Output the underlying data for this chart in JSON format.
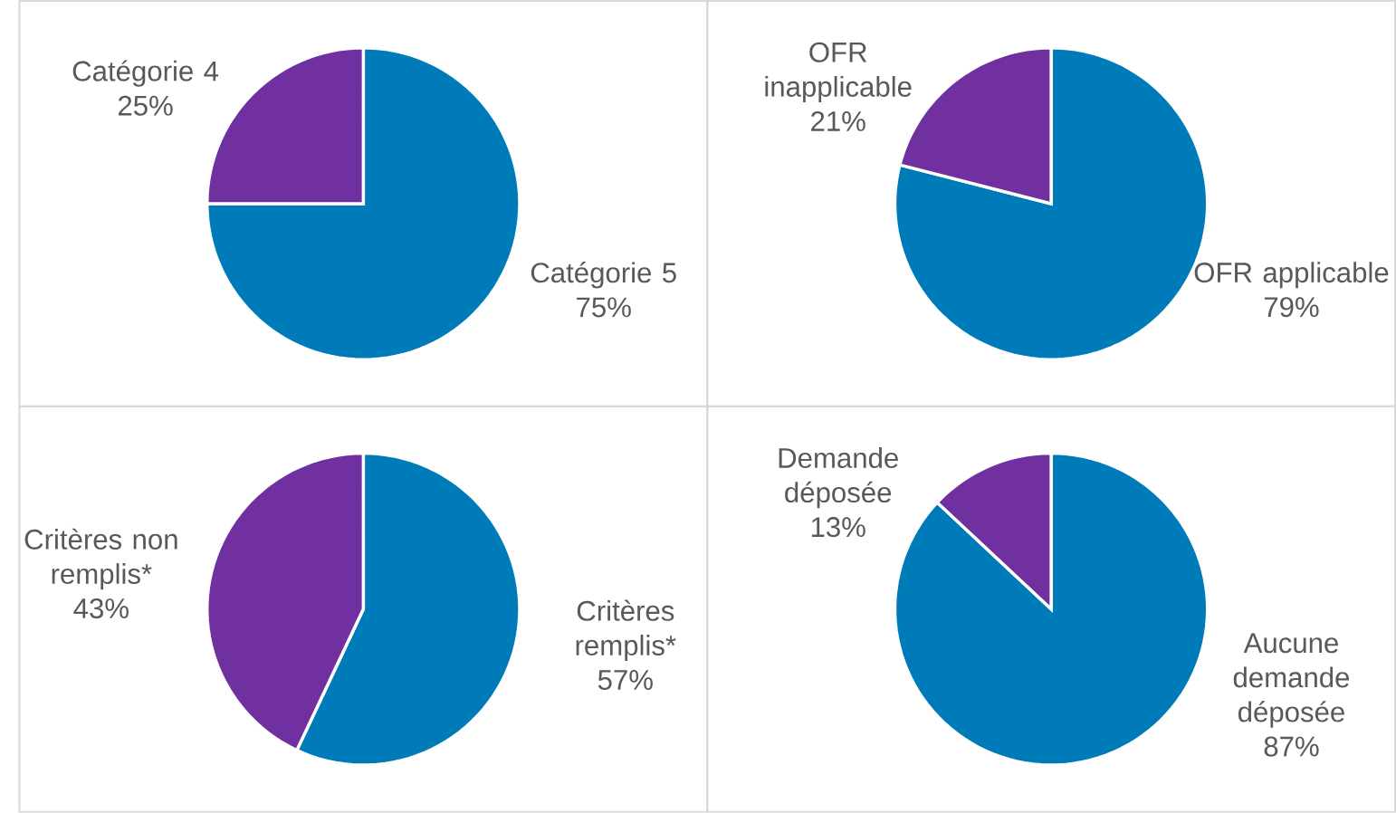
{
  "chart_data": [
    {
      "type": "pie",
      "categories": [
        "Catégorie 5",
        "Catégorie 4"
      ],
      "values": [
        75,
        25
      ],
      "value_labels": [
        "75%",
        "25%"
      ],
      "colors": [
        "#007bba",
        "#7030a0"
      ]
    },
    {
      "type": "pie",
      "categories": [
        "OFR applicable",
        "OFR inapplicable"
      ],
      "values": [
        79,
        21
      ],
      "value_labels": [
        "79%",
        "21%"
      ],
      "colors": [
        "#007bba",
        "#7030a0"
      ]
    },
    {
      "type": "pie",
      "categories": [
        "Critères remplis*",
        "Critères non remplis*"
      ],
      "values": [
        57,
        43
      ],
      "value_labels": [
        "57%",
        "43%"
      ],
      "colors": [
        "#007bba",
        "#7030a0"
      ]
    },
    {
      "type": "pie",
      "categories": [
        "Aucune demande déposée",
        "Demande déposée"
      ],
      "values": [
        87,
        13
      ],
      "value_labels": [
        "87%",
        "13%"
      ],
      "colors": [
        "#007bba",
        "#7030a0"
      ]
    }
  ]
}
